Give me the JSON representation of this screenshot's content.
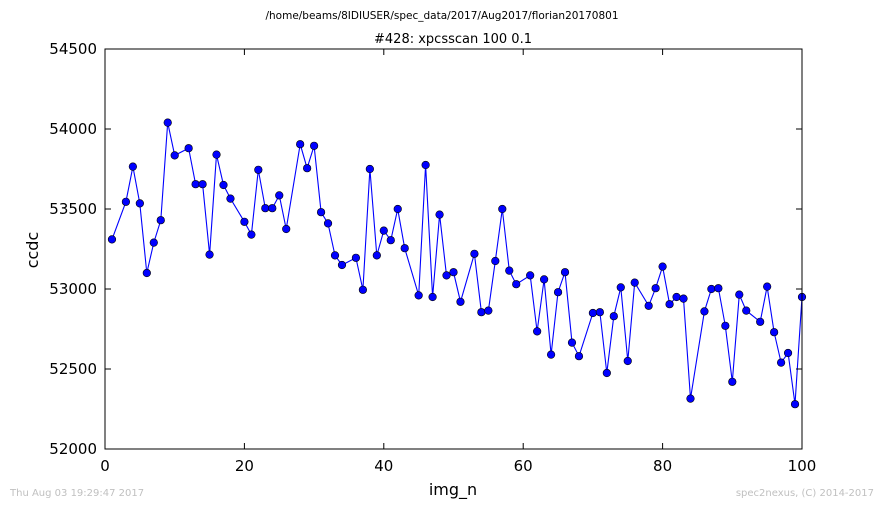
{
  "footer": {
    "timestamp": "Thu Aug 03 19:29:47 2017",
    "credit": "spec2nexus, (C) 2014-2017"
  },
  "chart_data": {
    "type": "line",
    "suptitle": "/home/beams/8IDIUSER/spec_data/2017/Aug2017/florian20170801",
    "title": "#428: xpcsscan 100 0.1",
    "xlabel": "img_n",
    "ylabel": "ccdc",
    "xlim": [
      0,
      100
    ],
    "ylim": [
      52000,
      54500
    ],
    "xticks": [
      0,
      20,
      40,
      60,
      80,
      100
    ],
    "yticks": [
      52000,
      52500,
      53000,
      53500,
      54000,
      54500
    ],
    "grid": false,
    "marker": "circle",
    "line_color": "#0000ff",
    "marker_color": "#0000ff",
    "x": [
      1,
      3,
      4,
      5,
      6,
      7,
      8,
      9,
      10,
      12,
      13,
      14,
      15,
      16,
      17,
      18,
      20,
      21,
      22,
      23,
      24,
      25,
      26,
      28,
      29,
      30,
      31,
      32,
      33,
      34,
      36,
      37,
      38,
      39,
      40,
      41,
      42,
      43,
      45,
      46,
      47,
      48,
      49,
      50,
      51,
      53,
      54,
      55,
      56,
      57,
      58,
      59,
      61,
      62,
      63,
      64,
      65,
      66,
      67,
      68,
      70,
      71,
      72,
      73,
      74,
      75,
      76,
      78,
      79,
      80,
      81,
      82,
      83,
      84,
      86,
      87,
      88,
      89,
      90,
      91,
      92,
      94,
      95,
      96,
      97,
      98,
      99,
      100
    ],
    "y": [
      53310,
      53545,
      53765,
      53535,
      53100,
      53290,
      53430,
      54040,
      53835,
      53880,
      53655,
      53655,
      53215,
      53840,
      53650,
      53565,
      53420,
      53340,
      53745,
      53505,
      53505,
      53585,
      53375,
      53905,
      53755,
      53895,
      53480,
      53410,
      53210,
      53150,
      53195,
      52995,
      53750,
      53210,
      53365,
      53305,
      53500,
      53255,
      52960,
      53775,
      52950,
      53465,
      53085,
      53105,
      52920,
      53220,
      52855,
      52865,
      53175,
      53500,
      53115,
      53030,
      53085,
      52735,
      53060,
      52590,
      52980,
      53105,
      52665,
      52580,
      52850,
      52855,
      52475,
      52830,
      53010,
      52550,
      53040,
      52895,
      53005,
      53140,
      52905,
      52950,
      52940,
      52315,
      52860,
      53000,
      53005,
      52770,
      52420,
      52965,
      52865,
      52795,
      53015,
      52730,
      52540,
      52600,
      52280,
      52950
    ]
  }
}
